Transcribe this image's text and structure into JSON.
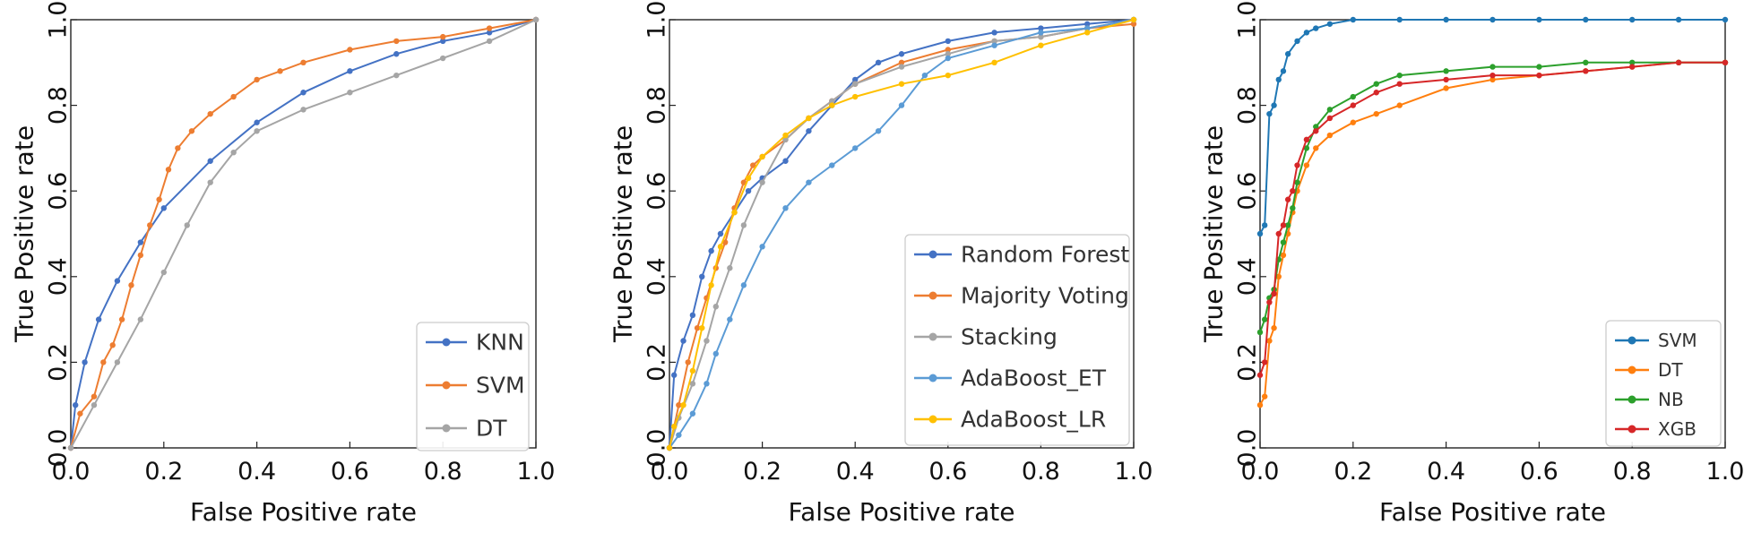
{
  "chart_data": [
    {
      "type": "line",
      "xlabel": "False Positive rate",
      "ylabel": "True Positive rate",
      "xlim": [
        0,
        1
      ],
      "ylim": [
        0,
        1
      ],
      "xticks": [
        "0.0",
        "0.2",
        "0.4",
        "0.6",
        "0.8",
        "1.0"
      ],
      "yticks": [
        "0.0",
        "0.2",
        "0.4",
        "0.6",
        "0.8",
        "1.0"
      ],
      "grid": false,
      "legend_position": "bottom-right",
      "series": [
        {
          "name": "KNN",
          "color": "#4472c4",
          "x": [
            0,
            0.01,
            0.03,
            0.06,
            0.1,
            0.15,
            0.2,
            0.3,
            0.4,
            0.5,
            0.6,
            0.7,
            0.8,
            0.9,
            1.0
          ],
          "y": [
            0,
            0.1,
            0.2,
            0.3,
            0.39,
            0.48,
            0.56,
            0.67,
            0.76,
            0.83,
            0.88,
            0.92,
            0.95,
            0.97,
            1.0
          ]
        },
        {
          "name": "SVM",
          "color": "#ed7d31",
          "x": [
            0,
            0.02,
            0.05,
            0.07,
            0.09,
            0.11,
            0.13,
            0.15,
            0.17,
            0.19,
            0.21,
            0.23,
            0.26,
            0.3,
            0.35,
            0.4,
            0.45,
            0.5,
            0.6,
            0.7,
            0.8,
            0.9,
            1.0
          ],
          "y": [
            0,
            0.08,
            0.12,
            0.2,
            0.24,
            0.3,
            0.38,
            0.45,
            0.52,
            0.58,
            0.65,
            0.7,
            0.74,
            0.78,
            0.82,
            0.86,
            0.88,
            0.9,
            0.93,
            0.95,
            0.96,
            0.98,
            1.0
          ]
        },
        {
          "name": "DT",
          "color": "#a5a5a5",
          "x": [
            0,
            0.05,
            0.1,
            0.15,
            0.2,
            0.25,
            0.3,
            0.35,
            0.4,
            0.5,
            0.6,
            0.7,
            0.8,
            0.9,
            1.0
          ],
          "y": [
            0,
            0.1,
            0.2,
            0.3,
            0.41,
            0.52,
            0.62,
            0.69,
            0.74,
            0.79,
            0.83,
            0.87,
            0.91,
            0.95,
            1.0
          ]
        }
      ]
    },
    {
      "type": "line",
      "xlabel": "False Positive rate",
      "ylabel": "True Positive rate",
      "xlim": [
        0,
        1
      ],
      "ylim": [
        0,
        1
      ],
      "xticks": [
        "0.0",
        "0.2",
        "0.4",
        "0.6",
        "0.8",
        "1.0"
      ],
      "yticks": [
        "0.0",
        "0.2",
        "0.4",
        "0.6",
        "0.8",
        "1.0"
      ],
      "grid": false,
      "legend_position": "bottom-right",
      "series": [
        {
          "name": "Random Forest",
          "color": "#4472c4",
          "x": [
            0,
            0.01,
            0.03,
            0.05,
            0.07,
            0.09,
            0.11,
            0.14,
            0.17,
            0.2,
            0.25,
            0.3,
            0.35,
            0.4,
            0.45,
            0.5,
            0.6,
            0.7,
            0.8,
            0.9,
            1.0
          ],
          "y": [
            0,
            0.17,
            0.25,
            0.31,
            0.4,
            0.46,
            0.5,
            0.55,
            0.6,
            0.63,
            0.67,
            0.74,
            0.8,
            0.86,
            0.9,
            0.92,
            0.95,
            0.97,
            0.98,
            0.99,
            1.0
          ]
        },
        {
          "name": "Majority Voting",
          "color": "#ed7d31",
          "x": [
            0,
            0.02,
            0.04,
            0.06,
            0.08,
            0.1,
            0.12,
            0.14,
            0.16,
            0.18,
            0.2,
            0.25,
            0.3,
            0.35,
            0.4,
            0.5,
            0.6,
            0.7,
            0.8,
            0.9,
            1.0
          ],
          "y": [
            0,
            0.1,
            0.2,
            0.28,
            0.35,
            0.42,
            0.48,
            0.56,
            0.62,
            0.66,
            0.68,
            0.72,
            0.77,
            0.81,
            0.85,
            0.9,
            0.93,
            0.95,
            0.96,
            0.98,
            0.99
          ]
        },
        {
          "name": "Stacking",
          "color": "#a5a5a5",
          "x": [
            0,
            0.02,
            0.05,
            0.08,
            0.1,
            0.13,
            0.16,
            0.2,
            0.25,
            0.3,
            0.35,
            0.4,
            0.5,
            0.6,
            0.7,
            0.8,
            0.9,
            1.0
          ],
          "y": [
            0,
            0.07,
            0.15,
            0.25,
            0.33,
            0.42,
            0.52,
            0.62,
            0.72,
            0.77,
            0.81,
            0.85,
            0.89,
            0.92,
            0.95,
            0.96,
            0.98,
            1.0
          ]
        },
        {
          "name": "AdaBoost_ET",
          "color": "#5b9bd5",
          "x": [
            0,
            0.02,
            0.05,
            0.08,
            0.1,
            0.13,
            0.16,
            0.2,
            0.25,
            0.3,
            0.35,
            0.4,
            0.45,
            0.5,
            0.55,
            0.6,
            0.7,
            0.8,
            0.9,
            1.0
          ],
          "y": [
            0,
            0.03,
            0.08,
            0.15,
            0.22,
            0.3,
            0.38,
            0.47,
            0.56,
            0.62,
            0.66,
            0.7,
            0.74,
            0.8,
            0.87,
            0.91,
            0.94,
            0.97,
            0.98,
            1.0
          ]
        },
        {
          "name": "AdaBoost_LR",
          "color": "#ffc000",
          "x": [
            0,
            0.01,
            0.03,
            0.05,
            0.07,
            0.09,
            0.11,
            0.14,
            0.17,
            0.2,
            0.25,
            0.3,
            0.35,
            0.4,
            0.5,
            0.6,
            0.7,
            0.8,
            0.9,
            1.0
          ],
          "y": [
            0,
            0.05,
            0.1,
            0.18,
            0.28,
            0.38,
            0.47,
            0.55,
            0.63,
            0.68,
            0.73,
            0.77,
            0.8,
            0.82,
            0.85,
            0.87,
            0.9,
            0.94,
            0.97,
            1.0
          ]
        }
      ]
    },
    {
      "type": "line",
      "xlabel": "False Positive rate",
      "ylabel": "True Positive rate",
      "xlim": [
        0,
        1
      ],
      "ylim": [
        0,
        1
      ],
      "xticks": [
        "0.0",
        "0.2",
        "0.4",
        "0.6",
        "0.8",
        "1.0"
      ],
      "yticks": [
        "0.0",
        "0.2",
        "0.4",
        "0.6",
        "0.8",
        "1.0"
      ],
      "grid": false,
      "legend_position": "bottom-right",
      "series": [
        {
          "name": "SVM",
          "color": "#1f77b4",
          "x": [
            0,
            0.01,
            0.02,
            0.03,
            0.04,
            0.05,
            0.06,
            0.08,
            0.1,
            0.12,
            0.15,
            0.2,
            0.3,
            0.4,
            0.5,
            0.6,
            0.7,
            0.8,
            0.9,
            1.0
          ],
          "y": [
            0.5,
            0.52,
            0.78,
            0.8,
            0.86,
            0.88,
            0.92,
            0.95,
            0.97,
            0.98,
            0.99,
            1.0,
            1.0,
            1.0,
            1.0,
            1.0,
            1.0,
            1.0,
            1.0,
            1.0
          ]
        },
        {
          "name": "DT",
          "color": "#ff7f0e",
          "x": [
            0,
            0.01,
            0.02,
            0.03,
            0.04,
            0.05,
            0.06,
            0.07,
            0.08,
            0.1,
            0.12,
            0.15,
            0.2,
            0.25,
            0.3,
            0.4,
            0.5,
            0.6,
            0.7,
            0.8,
            0.9,
            1.0
          ],
          "y": [
            0.1,
            0.12,
            0.25,
            0.28,
            0.4,
            0.45,
            0.5,
            0.55,
            0.6,
            0.66,
            0.7,
            0.73,
            0.76,
            0.78,
            0.8,
            0.84,
            0.86,
            0.87,
            0.88,
            0.89,
            0.9,
            0.9
          ]
        },
        {
          "name": "NB",
          "color": "#2ca02c",
          "x": [
            0,
            0.01,
            0.02,
            0.03,
            0.04,
            0.05,
            0.06,
            0.07,
            0.08,
            0.1,
            0.12,
            0.15,
            0.2,
            0.25,
            0.3,
            0.4,
            0.5,
            0.6,
            0.7,
            0.8,
            0.9,
            1.0
          ],
          "y": [
            0.27,
            0.3,
            0.35,
            0.37,
            0.44,
            0.48,
            0.52,
            0.56,
            0.62,
            0.7,
            0.75,
            0.79,
            0.82,
            0.85,
            0.87,
            0.88,
            0.89,
            0.89,
            0.9,
            0.9,
            0.9,
            0.9
          ]
        },
        {
          "name": "XGB",
          "color": "#d62728",
          "x": [
            0,
            0.01,
            0.02,
            0.03,
            0.04,
            0.05,
            0.06,
            0.07,
            0.08,
            0.1,
            0.12,
            0.15,
            0.2,
            0.25,
            0.3,
            0.4,
            0.5,
            0.6,
            0.7,
            0.8,
            0.9,
            1.0
          ],
          "y": [
            0.17,
            0.2,
            0.34,
            0.36,
            0.5,
            0.52,
            0.58,
            0.6,
            0.66,
            0.72,
            0.74,
            0.77,
            0.8,
            0.83,
            0.85,
            0.86,
            0.87,
            0.87,
            0.88,
            0.89,
            0.9,
            0.9
          ]
        }
      ]
    }
  ]
}
